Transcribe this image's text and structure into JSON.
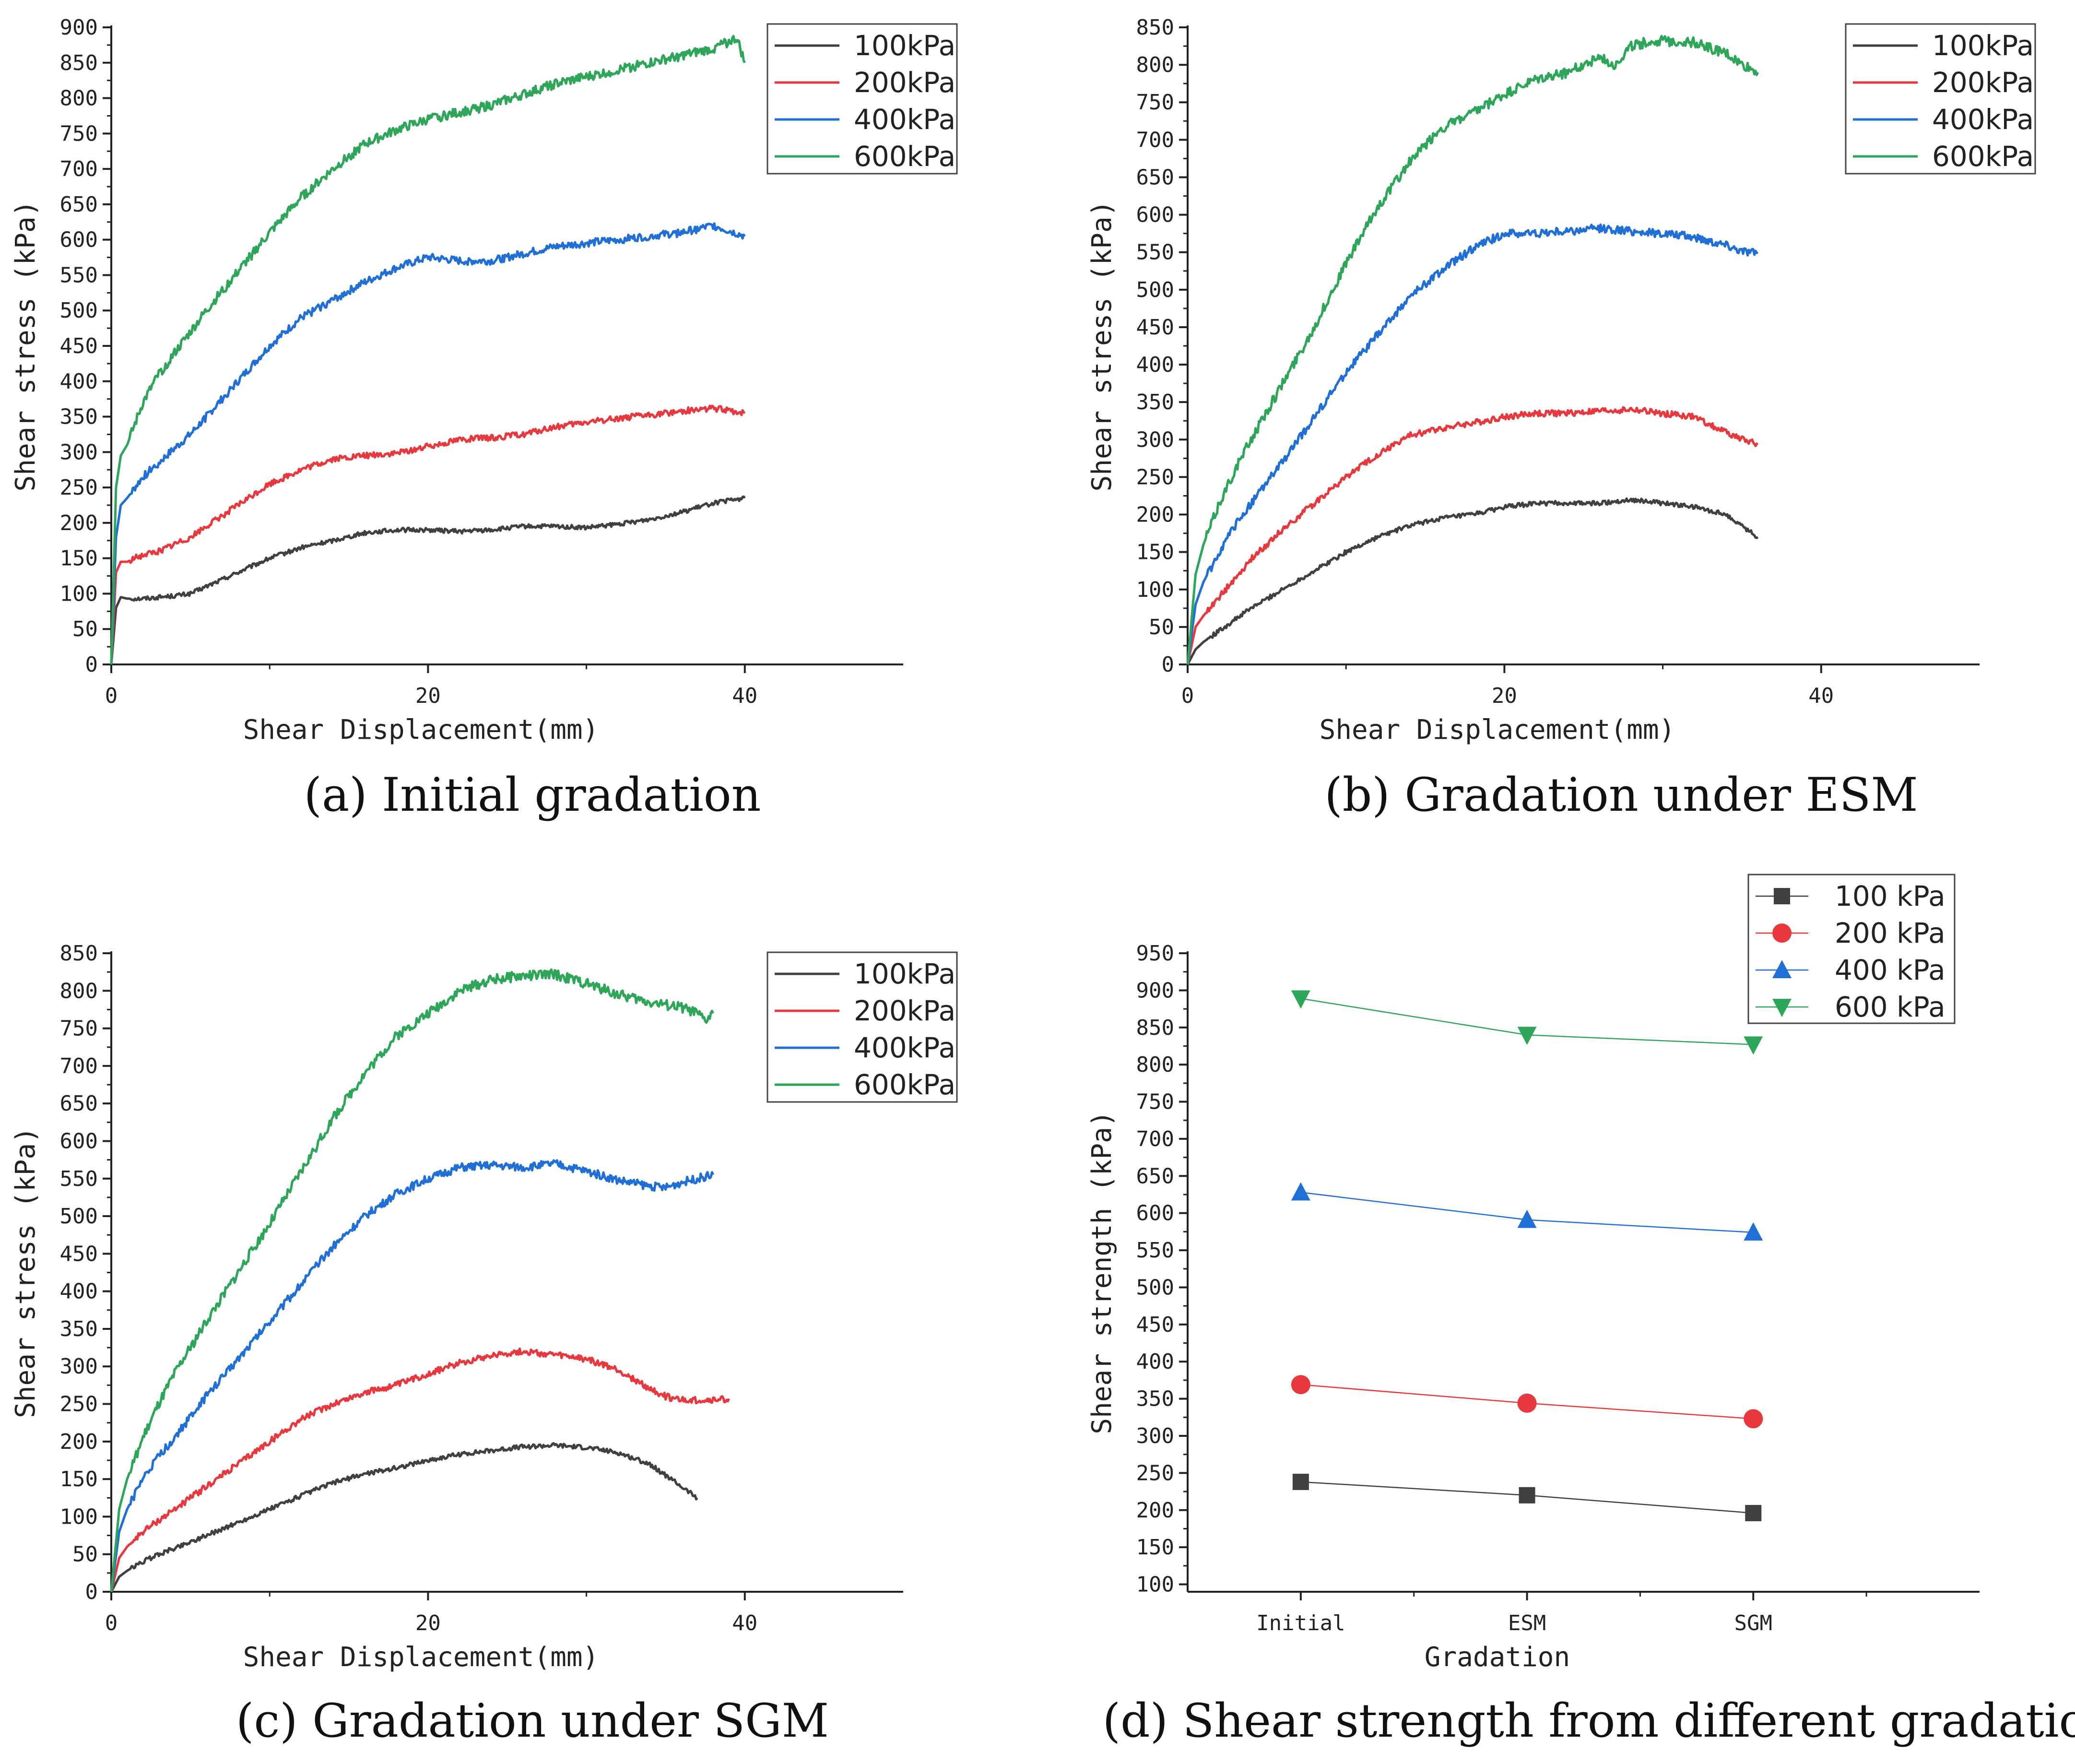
{
  "colors": {
    "s100": "#404040",
    "s200": "#e8383d",
    "s400": "#1f6fd6",
    "s600": "#2ea65a",
    "axis": "#222222"
  },
  "chart_data": [
    {
      "id": "a",
      "type": "line",
      "caption": "(a) Initial gradation",
      "xlabel": "Shear Displacement(mm)",
      "ylabel": "Shear stress (kPa)",
      "xlim": [
        0,
        50
      ],
      "ylim": [
        0,
        900
      ],
      "xticks": [
        0,
        20,
        40
      ],
      "yticks": [
        0,
        50,
        100,
        150,
        200,
        250,
        300,
        350,
        400,
        450,
        500,
        550,
        600,
        650,
        700,
        750,
        800,
        850,
        900
      ],
      "legend_position": "top-right",
      "series": [
        {
          "name": "100kPa",
          "color_key": "s100",
          "x": [
            0,
            0.3,
            0.6,
            1,
            2,
            3,
            4,
            5,
            6,
            8,
            10,
            12,
            14,
            16,
            18,
            20,
            22,
            24,
            26,
            28,
            30,
            32,
            34,
            36,
            38,
            40
          ],
          "y": [
            0,
            80,
            95,
            93,
            93,
            95,
            97,
            100,
            110,
            130,
            150,
            165,
            175,
            186,
            190,
            190,
            188,
            190,
            195,
            195,
            193,
            198,
            205,
            215,
            228,
            235
          ]
        },
        {
          "name": "200kPa",
          "color_key": "s200",
          "x": [
            0,
            0.3,
            0.6,
            1,
            2,
            3,
            4,
            5,
            6,
            8,
            10,
            12,
            14,
            16,
            18,
            20,
            22,
            24,
            26,
            28,
            30,
            32,
            34,
            36,
            38,
            40
          ],
          "y": [
            0,
            130,
            145,
            145,
            155,
            160,
            170,
            180,
            195,
            225,
            255,
            275,
            290,
            295,
            298,
            308,
            318,
            320,
            325,
            335,
            342,
            348,
            352,
            358,
            362,
            355
          ]
        },
        {
          "name": "400kPa",
          "color_key": "s400",
          "x": [
            0,
            0.3,
            0.6,
            1,
            2,
            3,
            4,
            5,
            6,
            8,
            10,
            12,
            14,
            16,
            18,
            20,
            22,
            24,
            26,
            28,
            30,
            32,
            34,
            36,
            38,
            40
          ],
          "y": [
            0,
            180,
            225,
            235,
            265,
            285,
            305,
            325,
            350,
            400,
            450,
            490,
            515,
            540,
            560,
            575,
            570,
            570,
            580,
            590,
            595,
            600,
            605,
            610,
            620,
            605
          ]
        },
        {
          "name": "600kPa",
          "color_key": "s600",
          "x": [
            0,
            0.3,
            0.6,
            1,
            2,
            3,
            4,
            5,
            6,
            8,
            10,
            12,
            14,
            16,
            18,
            20,
            22,
            24,
            26,
            28,
            30,
            32,
            34,
            36,
            38,
            39.5,
            40
          ],
          "y": [
            0,
            250,
            295,
            310,
            370,
            410,
            440,
            470,
            500,
            555,
            610,
            660,
            700,
            735,
            755,
            770,
            780,
            790,
            805,
            820,
            830,
            840,
            850,
            860,
            870,
            885,
            850
          ]
        }
      ]
    },
    {
      "id": "b",
      "type": "line",
      "caption": "(b) Gradation under ESM",
      "xlabel": "Shear Displacement(mm)",
      "ylabel": "Shear stress (kPa)",
      "xlim": [
        0,
        50
      ],
      "ylim": [
        0,
        850
      ],
      "xticks": [
        0,
        20,
        40
      ],
      "yticks": [
        0,
        50,
        100,
        150,
        200,
        250,
        300,
        350,
        400,
        450,
        500,
        550,
        600,
        650,
        700,
        750,
        800,
        850
      ],
      "legend_position": "top-right",
      "series": [
        {
          "name": "100kPa",
          "color_key": "s100",
          "x": [
            0,
            0.5,
            1,
            2,
            3,
            4,
            6,
            8,
            10,
            12,
            14,
            16,
            18,
            20,
            22,
            24,
            26,
            28,
            30,
            32,
            34,
            35,
            36
          ],
          "y": [
            0,
            20,
            30,
            45,
            60,
            75,
            100,
            125,
            150,
            170,
            185,
            195,
            200,
            210,
            215,
            215,
            215,
            220,
            215,
            210,
            200,
            185,
            170
          ]
        },
        {
          "name": "200kPa",
          "color_key": "s200",
          "x": [
            0,
            0.5,
            1,
            2,
            3,
            4,
            6,
            8,
            10,
            12,
            14,
            16,
            18,
            20,
            22,
            24,
            26,
            28,
            30,
            32,
            34,
            35,
            36
          ],
          "y": [
            0,
            50,
            65,
            90,
            115,
            140,
            180,
            215,
            250,
            280,
            305,
            315,
            322,
            330,
            335,
            335,
            338,
            340,
            335,
            330,
            310,
            300,
            295
          ]
        },
        {
          "name": "400kPa",
          "color_key": "s400",
          "x": [
            0,
            0.5,
            1,
            2,
            3,
            4,
            6,
            8,
            10,
            12,
            14,
            16,
            18,
            20,
            22,
            24,
            26,
            28,
            30,
            32,
            34,
            35,
            36
          ],
          "y": [
            0,
            80,
            110,
            150,
            185,
            215,
            270,
            330,
            390,
            440,
            490,
            525,
            555,
            575,
            575,
            578,
            582,
            578,
            575,
            570,
            560,
            552,
            550
          ]
        },
        {
          "name": "600kPa",
          "color_key": "s600",
          "x": [
            0,
            0.5,
            1,
            2,
            3,
            4,
            6,
            8,
            10,
            12,
            14,
            16,
            18,
            20,
            22,
            24,
            26,
            27,
            28,
            29,
            30,
            32,
            34,
            35,
            36
          ],
          "y": [
            0,
            120,
            160,
            215,
            260,
            300,
            375,
            450,
            535,
            610,
            670,
            715,
            735,
            760,
            780,
            790,
            810,
            800,
            825,
            830,
            832,
            830,
            815,
            800,
            790
          ]
        }
      ]
    },
    {
      "id": "c",
      "type": "line",
      "caption": "(c) Gradation under SGM",
      "xlabel": "Shear Displacement(mm)",
      "ylabel": "Shear stress (kPa)",
      "xlim": [
        0,
        50
      ],
      "ylim": [
        0,
        850
      ],
      "xticks": [
        0,
        20,
        40
      ],
      "yticks": [
        0,
        50,
        100,
        150,
        200,
        250,
        300,
        350,
        400,
        450,
        500,
        550,
        600,
        650,
        700,
        750,
        800,
        850
      ],
      "legend_position": "top-right",
      "series": [
        {
          "name": "100kPa",
          "color_key": "s100",
          "x": [
            0,
            0.5,
            1,
            2,
            3,
            4,
            6,
            8,
            10,
            12,
            14,
            16,
            18,
            20,
            22,
            24,
            26,
            28,
            30,
            32,
            34,
            36,
            37
          ],
          "y": [
            0,
            20,
            28,
            40,
            50,
            58,
            75,
            92,
            110,
            128,
            145,
            157,
            165,
            175,
            183,
            188,
            193,
            195,
            192,
            185,
            170,
            140,
            125
          ]
        },
        {
          "name": "200kPa",
          "color_key": "s200",
          "x": [
            0,
            0.5,
            1,
            2,
            3,
            4,
            6,
            8,
            10,
            12,
            14,
            16,
            18,
            20,
            22,
            24,
            26,
            28,
            30,
            32,
            34,
            35,
            36,
            37,
            38,
            39
          ],
          "y": [
            0,
            45,
            60,
            80,
            95,
            110,
            140,
            170,
            200,
            230,
            250,
            265,
            275,
            290,
            305,
            315,
            320,
            315,
            310,
            295,
            270,
            260,
            255,
            255,
            255,
            257
          ]
        },
        {
          "name": "400kPa",
          "color_key": "s400",
          "x": [
            0,
            0.5,
            1,
            2,
            3,
            4,
            6,
            8,
            10,
            12,
            14,
            16,
            18,
            20,
            22,
            24,
            26,
            28,
            30,
            32,
            34,
            35,
            36,
            37,
            38
          ],
          "y": [
            0,
            80,
            110,
            150,
            180,
            205,
            260,
            310,
            360,
            410,
            460,
            500,
            530,
            550,
            565,
            568,
            565,
            570,
            560,
            548,
            540,
            538,
            545,
            550,
            555
          ]
        },
        {
          "name": "600kPa",
          "color_key": "s600",
          "x": [
            0,
            0.5,
            1,
            2,
            3,
            4,
            6,
            8,
            10,
            12,
            14,
            16,
            18,
            20,
            22,
            24,
            26,
            28,
            30,
            32,
            34,
            36,
            37,
            37.5,
            38
          ],
          "y": [
            0,
            110,
            150,
            205,
            250,
            290,
            360,
            425,
            490,
            560,
            630,
            690,
            740,
            770,
            800,
            815,
            820,
            822,
            810,
            795,
            785,
            778,
            770,
            760,
            770
          ]
        }
      ]
    },
    {
      "id": "d",
      "type": "line",
      "marker_chart": true,
      "caption": "(d) Shear strength from different gradations",
      "xlabel": "Gradation",
      "ylabel": "Shear strength (kPa)",
      "categories": [
        "Initial",
        "ESM",
        "SGM"
      ],
      "ylim": [
        90,
        950
      ],
      "yticks": [
        100,
        150,
        200,
        250,
        300,
        350,
        400,
        450,
        500,
        550,
        600,
        650,
        700,
        750,
        800,
        850,
        900,
        950
      ],
      "legend_position": "top-right",
      "series": [
        {
          "name": "100 kPa",
          "color_key": "s100",
          "marker": "square",
          "values": [
            238,
            220,
            196
          ]
        },
        {
          "name": "200 kPa",
          "color_key": "s200",
          "marker": "circle",
          "values": [
            369,
            344,
            323
          ]
        },
        {
          "name": "400 kPa",
          "color_key": "s400",
          "marker": "triangle-up",
          "values": [
            628,
            591,
            574
          ]
        },
        {
          "name": "600 kPa",
          "color_key": "s600",
          "marker": "triangle-down",
          "values": [
            889,
            840,
            827
          ]
        }
      ]
    }
  ]
}
